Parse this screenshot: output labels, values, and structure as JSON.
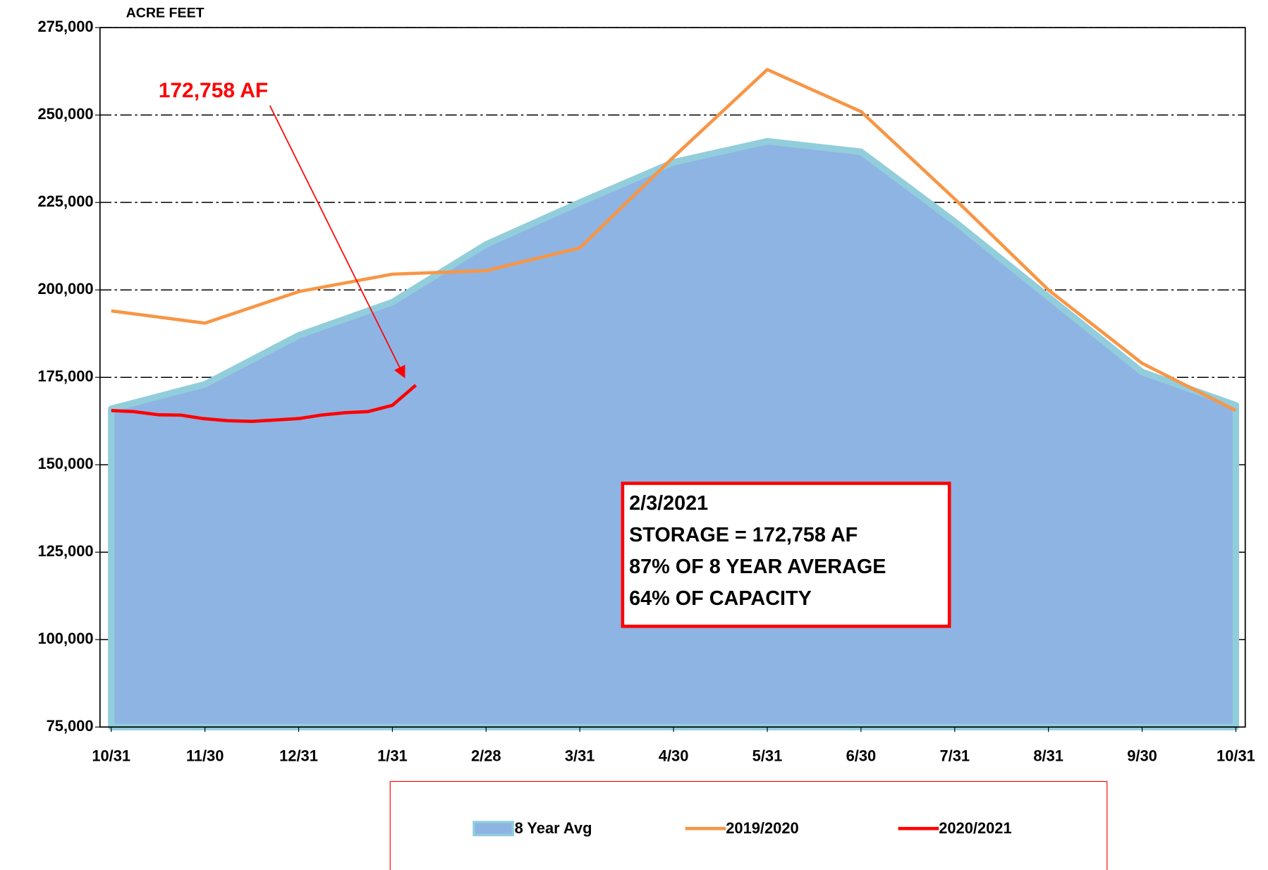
{
  "chart_data": {
    "type": "area_line",
    "y_axis_label": "ACRE FEET",
    "x": [
      0,
      1,
      2,
      3,
      4,
      5,
      6,
      7,
      8,
      9,
      10,
      11,
      12
    ],
    "xlim": [
      -0.12,
      12.1
    ],
    "xticks": [
      {
        "value": 0,
        "label": "10/31"
      },
      {
        "value": 1,
        "label": "11/30"
      },
      {
        "value": 2,
        "label": "12/31"
      },
      {
        "value": 3,
        "label": "1/31"
      },
      {
        "value": 4,
        "label": "2/28"
      },
      {
        "value": 5,
        "label": "3/31"
      },
      {
        "value": 6,
        "label": "4/30"
      },
      {
        "value": 7,
        "label": "5/31"
      },
      {
        "value": 8,
        "label": "6/30"
      },
      {
        "value": 9,
        "label": "7/31"
      },
      {
        "value": 10,
        "label": "8/31"
      },
      {
        "value": 11,
        "label": "9/30"
      },
      {
        "value": 12,
        "label": "10/31"
      }
    ],
    "ylim": [
      75000,
      275000
    ],
    "yticks": [
      {
        "value": 75000,
        "label": "75,000"
      },
      {
        "value": 100000,
        "label": "100,000"
      },
      {
        "value": 125000,
        "label": "125,000"
      },
      {
        "value": 150000,
        "label": "150,000"
      },
      {
        "value": 175000,
        "label": "175,000"
      },
      {
        "value": 200000,
        "label": "200,000"
      },
      {
        "value": 225000,
        "label": "225,000"
      },
      {
        "value": 250000,
        "label": "250,000"
      },
      {
        "value": 275000,
        "label": "275,000"
      }
    ],
    "grid": true,
    "series": [
      {
        "name": "8 Year Avg",
        "kind": "area",
        "color": "#8eb4e3",
        "edge_color": "#92cddc",
        "values": [
          166000,
          173000,
          187000,
          196500,
          213000,
          225000,
          236500,
          242500,
          239500,
          219500,
          198000,
          176500,
          167000
        ]
      },
      {
        "name": "2019/2020",
        "kind": "line",
        "color": "#f79646",
        "values": [
          194000,
          190500,
          199500,
          204500,
          205500,
          212000,
          238000,
          263000,
          251000,
          226000,
          200000,
          179000,
          165500
        ]
      },
      {
        "name": "2020/2021",
        "kind": "line",
        "color": "#ff0000",
        "x": [
          0,
          0.24,
          0.5,
          0.74,
          0.98,
          1.24,
          1.5,
          2,
          2.24,
          2.5,
          2.74,
          3,
          3.25
        ],
        "values": [
          165500,
          165200,
          164300,
          164200,
          163200,
          162600,
          162400,
          163200,
          164200,
          164900,
          165200,
          167000,
          172758
        ]
      }
    ],
    "annotations": {
      "callout": "172,758 AF",
      "box": [
        "2/3/2021",
        "STORAGE = 172,758 AF",
        "87% OF 8 YEAR AVERAGE",
        "64% OF CAPACITY"
      ]
    }
  }
}
